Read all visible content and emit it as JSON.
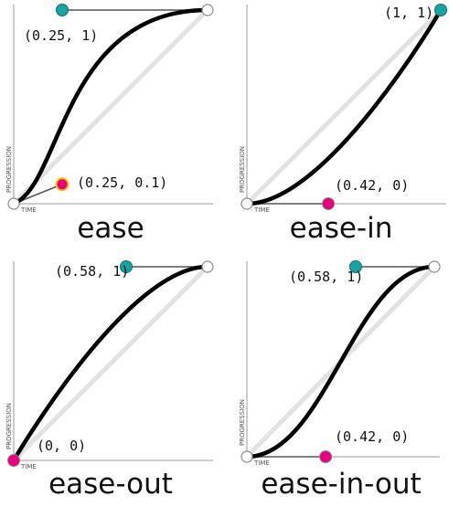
{
  "axis_labels": {
    "x": "TIME",
    "y": "PROGRESSION"
  },
  "colors": {
    "p1": "#e6007e",
    "p2": "#1aa3a3",
    "curve": "#000000",
    "diagonal": "#e2e2e2"
  },
  "panels": [
    {
      "name": "ease",
      "title": "ease",
      "p1": [
        0.25,
        0.1
      ],
      "p2": [
        0.25,
        1
      ],
      "p1_label": "(0.25, 0.1)",
      "p2_label": "(0.25, 1)",
      "p1_selected": true
    },
    {
      "name": "ease-in",
      "title": "ease-in",
      "p1": [
        0.42,
        0
      ],
      "p2": [
        1,
        1
      ],
      "p1_label": "(0.42, 0)",
      "p2_label": "(1, 1)",
      "p1_selected": false
    },
    {
      "name": "ease-out",
      "title": "ease-out",
      "p1": [
        0,
        0
      ],
      "p2": [
        0.58,
        1
      ],
      "p1_label": "(0, 0)",
      "p2_label": "(0.58, 1)",
      "p1_selected": false
    },
    {
      "name": "ease-in-out",
      "title": "ease-in-out",
      "p1": [
        0.42,
        0
      ],
      "p2": [
        0.58,
        1
      ],
      "p1_label": "(0.42, 0)",
      "p2_label": "(0.58, 1)",
      "p1_selected": false
    }
  ]
}
